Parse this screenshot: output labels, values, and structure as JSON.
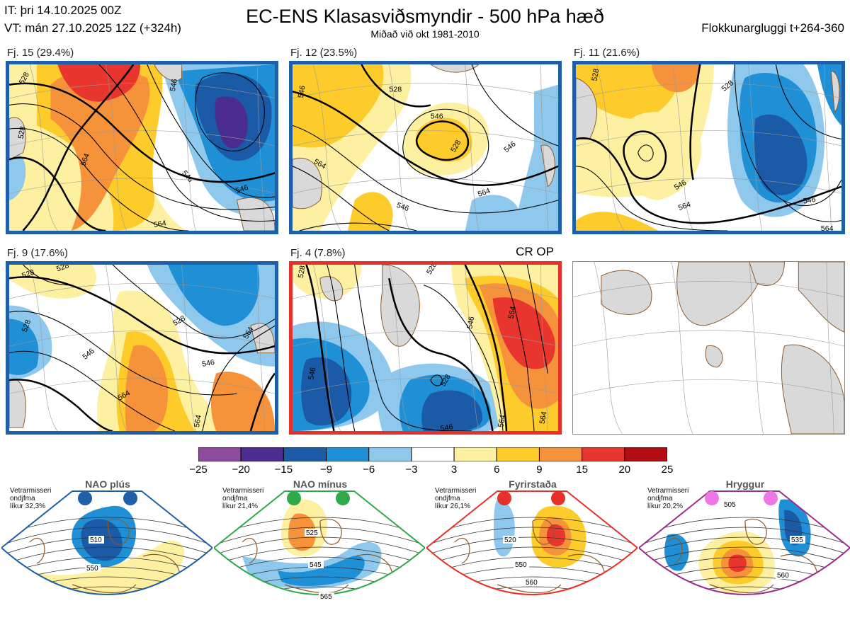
{
  "header": {
    "it": "IT: þri 14.10.2025 00Z",
    "vt": "VT: mán 27.10.2025 12Z  (+324h)",
    "title": "EC-ENS Klasasviðsmyndir - 500 hPa hæð",
    "subtitle": "Miðað við okt 1981-2010",
    "window": "Flokkunargluggi t+264-360"
  },
  "op_label": "CR OP",
  "colors": {
    "blue_frame": "#1f5fa8",
    "red_frame": "#e8302b",
    "land": "#d9d9d9",
    "coast": "#8a5a2b",
    "nao_plus": "#1f5fa8",
    "nao_minus": "#2eaa4a",
    "blocking": "#e8302b",
    "ridge": "#9b2d8e"
  },
  "chart_data": [
    {
      "type": "heatmap",
      "title": "Fj. 15 (29.4%)",
      "cluster": 15,
      "share_pct": 29.4,
      "contour_labels": [
        "528",
        "546",
        "546",
        "564",
        "564",
        "528",
        "546"
      ]
    },
    {
      "type": "heatmap",
      "title": "Fj. 12 (23.5%)",
      "cluster": 12,
      "share_pct": 23.5,
      "contour_labels": [
        "546",
        "546",
        "528",
        "528",
        "546",
        "564",
        "564",
        "546"
      ]
    },
    {
      "type": "heatmap",
      "title": "Fj. 11 (21.6%)",
      "cluster": 11,
      "share_pct": 21.6,
      "contour_labels": [
        "528",
        "528",
        "546",
        "564",
        "546",
        "564"
      ]
    },
    {
      "type": "heatmap",
      "title": "Fj. 9 (17.6%)",
      "cluster": 9,
      "share_pct": 17.6,
      "contour_labels": [
        "528",
        "528",
        "528",
        "546",
        "546",
        "528",
        "564",
        "564",
        "564"
      ]
    },
    {
      "type": "heatmap",
      "title": "Fj. 4 (7.8%)",
      "cluster": 4,
      "share_pct": 7.8,
      "contour_labels": [
        "528",
        "546",
        "528",
        "546",
        "564",
        "528",
        "546",
        "564",
        "564"
      ]
    },
    {
      "type": "heatmap",
      "title": "",
      "note": "empty map panel"
    }
  ],
  "colorbar": {
    "ticks": [
      "−25",
      "−20",
      "−15",
      "−9",
      "−6",
      "−3",
      "3",
      "6",
      "9",
      "15",
      "20",
      "25"
    ],
    "colors": [
      "#8e4b9c",
      "#4b2d91",
      "#1a5aa6",
      "#1f8fd6",
      "#8ec8ec",
      "#ffffff",
      "#fdf0a0",
      "#fdcc2a",
      "#f5923a",
      "#e8352e",
      "#b40d16"
    ]
  },
  "regimes": [
    {
      "name": "NAO plús",
      "caption": [
        "Vetrarmisseri",
        "ondjfma",
        "líkur 32,3%"
      ],
      "dot_color": "#1f5fa8",
      "labels": [
        "510",
        "550"
      ]
    },
    {
      "name": "NAO mínus",
      "caption": [
        "Vetrarmisseri",
        "ondjfma",
        "líkur 21,4%"
      ],
      "dot_color": "#2eaa4a",
      "labels": [
        "525",
        "545",
        "565"
      ]
    },
    {
      "name": "Fyrirstaða",
      "caption": [
        "Vetrarmisseri",
        "ondjfma",
        "líkur 26,1%"
      ],
      "dot_color": "#e8302b",
      "labels": [
        "520",
        "550",
        "560"
      ]
    },
    {
      "name": "Hryggur",
      "caption": [
        "Vetrarmisseri",
        "ondjfma",
        "líkur 20,2%"
      ],
      "dot_color": "#ee77e6",
      "labels": [
        "505",
        "535",
        "560"
      ]
    }
  ]
}
